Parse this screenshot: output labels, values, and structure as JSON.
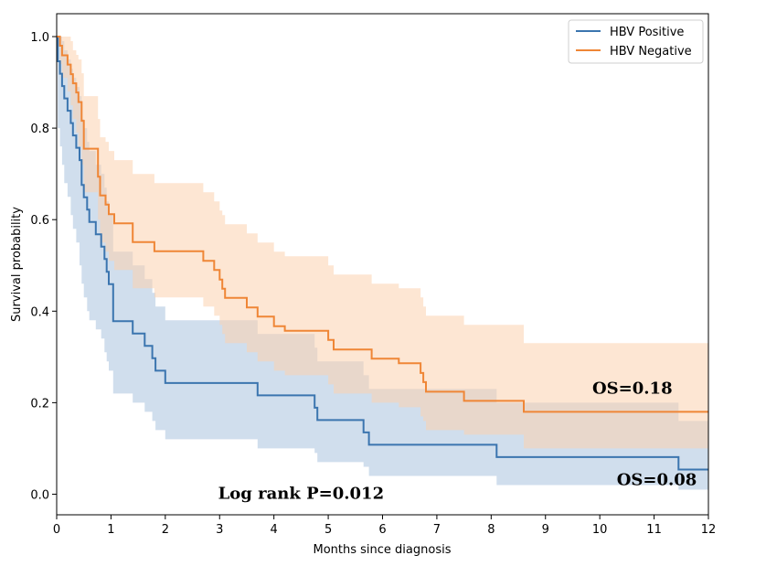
{
  "chart_data": {
    "type": "line",
    "xlabel": "Months since diagnosis",
    "ylabel": "Survival probability",
    "xlim": [
      0,
      12
    ],
    "ylim": [
      -0.045,
      1.05
    ],
    "xticks": [
      "0",
      "1",
      "2",
      "3",
      "4",
      "5",
      "6",
      "7",
      "8",
      "9",
      "10",
      "11",
      "12"
    ],
    "yticks": [
      "0.0",
      "0.2",
      "0.4",
      "0.6",
      "0.8",
      "1.0"
    ],
    "grid": false,
    "legend_position": "top-right",
    "series": [
      {
        "name": "HBV Positive",
        "color": "#3b75af",
        "ci_color": "#a9c3de",
        "x": [
          0,
          0.02,
          0.06,
          0.1,
          0.14,
          0.2,
          0.26,
          0.3,
          0.36,
          0.42,
          0.46,
          0.5,
          0.56,
          0.6,
          0.66,
          0.72,
          0.78,
          0.82,
          0.88,
          0.92,
          0.96,
          1.0,
          1.04,
          1.4,
          1.62,
          1.76,
          1.82,
          2.0,
          3.7,
          4.75,
          4.8,
          5.65,
          5.75,
          8.1,
          11.45,
          12.0
        ],
        "y": [
          1.0,
          0.946,
          0.919,
          0.892,
          0.865,
          0.838,
          0.811,
          0.784,
          0.757,
          0.73,
          0.676,
          0.649,
          0.622,
          0.595,
          0.595,
          0.568,
          0.568,
          0.541,
          0.514,
          0.486,
          0.459,
          0.459,
          0.378,
          0.351,
          0.324,
          0.297,
          0.27,
          0.243,
          0.216,
          0.189,
          0.162,
          0.135,
          0.108,
          0.081,
          0.054,
          0.054
        ],
        "ci_lower": [
          1.0,
          0.8,
          0.76,
          0.72,
          0.68,
          0.65,
          0.61,
          0.58,
          0.55,
          0.5,
          0.46,
          0.43,
          0.4,
          0.38,
          0.38,
          0.36,
          0.36,
          0.34,
          0.31,
          0.29,
          0.27,
          0.27,
          0.22,
          0.2,
          0.18,
          0.16,
          0.14,
          0.12,
          0.1,
          0.09,
          0.07,
          0.06,
          0.04,
          0.02,
          0.01,
          0.01
        ],
        "ci_upper": [
          1.0,
          1.0,
          1.0,
          0.99,
          0.97,
          0.95,
          0.93,
          0.91,
          0.89,
          0.87,
          0.82,
          0.8,
          0.77,
          0.75,
          0.75,
          0.72,
          0.72,
          0.7,
          0.67,
          0.64,
          0.61,
          0.61,
          0.53,
          0.5,
          0.47,
          0.44,
          0.41,
          0.38,
          0.35,
          0.32,
          0.29,
          0.26,
          0.23,
          0.2,
          0.16,
          0.16
        ]
      },
      {
        "name": "HBV Negative",
        "color": "#ef8636",
        "ci_color": "#fbd2ae",
        "x": [
          0,
          0.06,
          0.1,
          0.2,
          0.26,
          0.3,
          0.36,
          0.4,
          0.46,
          0.5,
          0.7,
          0.76,
          0.8,
          0.9,
          0.96,
          1.0,
          1.06,
          1.4,
          1.76,
          1.8,
          2.0,
          2.7,
          2.9,
          3.0,
          3.05,
          3.1,
          3.5,
          3.7,
          4.0,
          4.2,
          4.7,
          5.0,
          5.1,
          5.7,
          5.8,
          6.3,
          6.7,
          6.75,
          6.8,
          6.9,
          7.5,
          8.1,
          8.6,
          9.0,
          12.0
        ],
        "y": [
          1.0,
          0.98,
          0.959,
          0.939,
          0.918,
          0.898,
          0.878,
          0.857,
          0.816,
          0.755,
          0.755,
          0.694,
          0.653,
          0.633,
          0.612,
          0.612,
          0.592,
          0.551,
          0.551,
          0.531,
          0.531,
          0.51,
          0.49,
          0.469,
          0.449,
          0.429,
          0.408,
          0.388,
          0.367,
          0.357,
          0.357,
          0.337,
          0.316,
          0.316,
          0.296,
          0.286,
          0.265,
          0.245,
          0.224,
          0.224,
          0.204,
          0.204,
          0.18,
          0.18,
          0.18
        ],
        "ci_lower": [
          1.0,
          0.94,
          0.91,
          0.88,
          0.85,
          0.82,
          0.79,
          0.76,
          0.72,
          0.66,
          0.66,
          0.6,
          0.55,
          0.53,
          0.51,
          0.51,
          0.49,
          0.45,
          0.45,
          0.43,
          0.43,
          0.41,
          0.39,
          0.37,
          0.35,
          0.33,
          0.31,
          0.29,
          0.27,
          0.26,
          0.26,
          0.24,
          0.22,
          0.22,
          0.2,
          0.19,
          0.17,
          0.16,
          0.14,
          0.14,
          0.13,
          0.13,
          0.1,
          0.1,
          0.1
        ],
        "ci_upper": [
          1.0,
          1.0,
          1.0,
          1.0,
          0.99,
          0.97,
          0.96,
          0.95,
          0.92,
          0.87,
          0.87,
          0.82,
          0.78,
          0.77,
          0.75,
          0.75,
          0.73,
          0.7,
          0.7,
          0.68,
          0.68,
          0.66,
          0.64,
          0.62,
          0.61,
          0.59,
          0.57,
          0.55,
          0.53,
          0.52,
          0.52,
          0.5,
          0.48,
          0.48,
          0.46,
          0.45,
          0.43,
          0.41,
          0.39,
          0.39,
          0.37,
          0.37,
          0.33,
          0.33,
          0.33
        ]
      }
    ],
    "annotations": [
      {
        "text": "OS=0.18",
        "x": 10.6,
        "y": 0.22
      },
      {
        "text": "OS=0.08",
        "x": 11.05,
        "y": 0.02
      },
      {
        "text": "Log rank P=0.012",
        "x": 4.5,
        "y": -0.01
      }
    ]
  }
}
